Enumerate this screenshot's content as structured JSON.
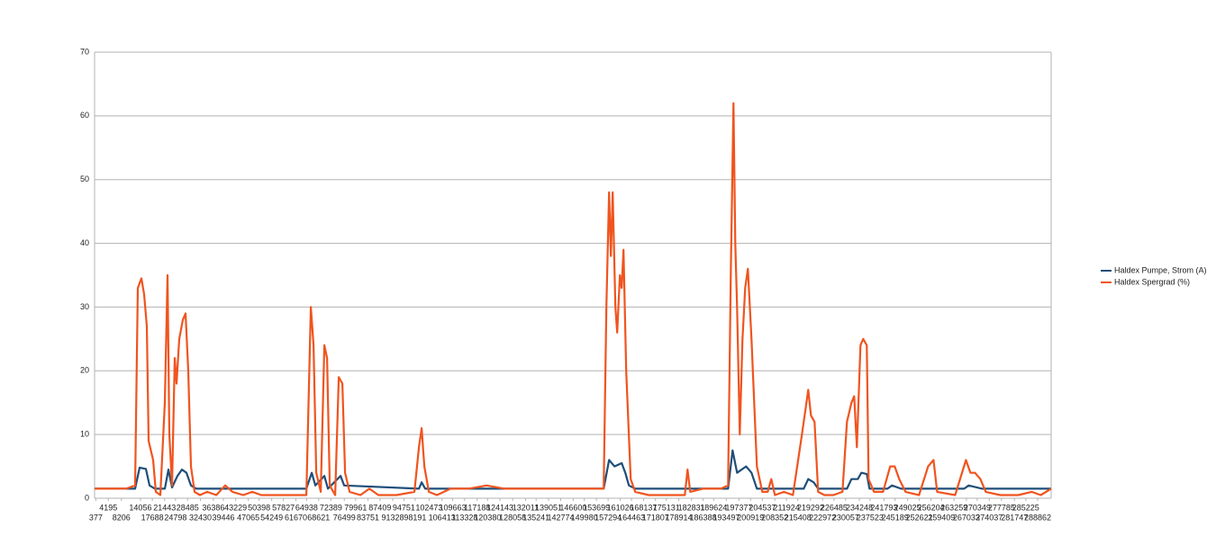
{
  "chart_data": {
    "type": "line",
    "ylim": [
      0,
      70
    ],
    "yticks": [
      0,
      10,
      20,
      30,
      40,
      50,
      60,
      70
    ],
    "grid": true,
    "xlim": [
      0,
      293000
    ],
    "xticks": [
      377,
      4195,
      8206,
      14056,
      17688,
      21443,
      24798,
      28485,
      32430,
      36386,
      39446,
      43229,
      47065,
      50398,
      54249,
      57827,
      61670,
      64938,
      68621,
      72389,
      76499,
      79961,
      83751,
      87409,
      91328,
      94751,
      98191,
      102473,
      106413,
      109663,
      113328,
      117188,
      120380,
      124143,
      128058,
      132011,
      135241,
      139051,
      142774,
      146600,
      149980,
      153699,
      157294,
      161026,
      164463,
      168137,
      171807,
      175131,
      178914,
      182831,
      186388,
      189624,
      193497,
      197377,
      200919,
      204537,
      208352,
      211924,
      215408,
      219292,
      222972,
      226485,
      230057,
      234248,
      237523,
      241793,
      245189,
      249025,
      252621,
      256204,
      259409,
      263259,
      267033,
      270349,
      274037,
      277785,
      281747,
      285225,
      288862
    ],
    "legend": "right",
    "series": [
      {
        "name": "Haldex Pumpe, Strom (A)",
        "color": "#1f4e79",
        "x": [
          0,
          12420,
          13800,
          15732,
          16836,
          18492,
          21528,
          22632,
          23736,
          25392,
          26772,
          28152,
          29532,
          31188,
          64860,
          66516,
          67620,
          70380,
          71484,
          75348,
          76452,
          99360,
          100188,
          101292,
          155940,
          157596,
          159252,
          161460,
          162564,
          163668,
          165600,
          194028,
          195408,
          196788,
          199548,
          201204,
          202860,
          217212,
          218592,
          220248,
          221628,
          230460,
          231840,
          233772,
          234876,
          236532,
          237360,
          242880,
          244260,
          247020,
          266340,
          267720,
          271860,
          293000
        ],
        "values": [
          1.5,
          1.5,
          4.8,
          4.6,
          2,
          1.5,
          1.5,
          4.5,
          1.7,
          3.5,
          4.5,
          4,
          2,
          1.5,
          1.5,
          4,
          2,
          3.5,
          1.5,
          3.5,
          2,
          1.5,
          2.5,
          1.5,
          1.5,
          6,
          5,
          5.5,
          4,
          2,
          1.5,
          1.5,
          7.5,
          4,
          5,
          4,
          1.5,
          1.5,
          3,
          2.5,
          1.5,
          1.5,
          3,
          3,
          4,
          3.8,
          1.5,
          1.5,
          2,
          1.5,
          1.5,
          2,
          1.5,
          1.5
        ]
      },
      {
        "name": "Haldex Spergrad (%)",
        "color": "#f0541e",
        "x": [
          0,
          9660,
          12420,
          13248,
          14352,
          15180,
          16008,
          16560,
          17940,
          18768,
          20148,
          21528,
          22356,
          22908,
          23736,
          24564,
          25116,
          25944,
          27048,
          27876,
          28704,
          29532,
          30636,
          32292,
          34500,
          37260,
          40020,
          42228,
          45540,
          48300,
          51060,
          56580,
          62100,
          64860,
          66240,
          67068,
          67896,
          69276,
          70380,
          71208,
          72036,
          73692,
          74796,
          75900,
          76728,
          78108,
          81420,
          84180,
          86940,
          92460,
          97980,
          99360,
          100188,
          101016,
          102396,
          104880,
          109020,
          114540,
          120060,
          125580,
          136620,
          147660,
          155940,
          156768,
          157596,
          158148,
          158700,
          159528,
          160080,
          160908,
          161460,
          162012,
          162840,
          164220,
          165600,
          169740,
          175260,
          180780,
          181608,
          182436,
          186300,
          191820,
          194028,
          194856,
          195684,
          196236,
          196788,
          197616,
          198444,
          199272,
          200100,
          201204,
          202860,
          204516,
          206172,
          207276,
          208380,
          211140,
          213900,
          216660,
          218592,
          219420,
          220524,
          221628,
          223560,
          226320,
          229080,
          230460,
          231840,
          232668,
          233496,
          234600,
          235428,
          236532,
          237084,
          238740,
          241500,
          243708,
          245088,
          246468,
          248400,
          252540,
          255300,
          256956,
          258060,
          263580,
          266892,
          268272,
          269652,
          271308,
          272964,
          277380,
          282900,
          287040,
          289800,
          293000
        ],
        "values": [
          1.5,
          1.5,
          2,
          33,
          34.5,
          32,
          27,
          9,
          6,
          1,
          0.5,
          15,
          35,
          10,
          2,
          22,
          18,
          25,
          28,
          29,
          20,
          5,
          1,
          0.5,
          1,
          0.5,
          2,
          1,
          0.5,
          1,
          0.5,
          0.5,
          0.5,
          0.5,
          30,
          24,
          4,
          1,
          24,
          22,
          2,
          0.5,
          19,
          18,
          4,
          1,
          0.5,
          1.5,
          0.5,
          0.5,
          1,
          8,
          11,
          5,
          1,
          0.5,
          1.5,
          1.5,
          2,
          1.5,
          1.5,
          1.5,
          1.5,
          30,
          48,
          38,
          48,
          30,
          26,
          35,
          33,
          39,
          20,
          3,
          1,
          0.5,
          0.5,
          0.5,
          4.5,
          1,
          1.5,
          1.5,
          2,
          35,
          62,
          40,
          30,
          10,
          25,
          33,
          36,
          25,
          5,
          1,
          1,
          3,
          0.5,
          1,
          0.5,
          10,
          17,
          13,
          12,
          1,
          0.5,
          0.5,
          1,
          12,
          15,
          16,
          8,
          24,
          25,
          24,
          3,
          1,
          1,
          5,
          5,
          3,
          1,
          0.5,
          5,
          6,
          1,
          0.5,
          6,
          4,
          4,
          3,
          1,
          0.5,
          0.5,
          1,
          0.5,
          1.5
        ]
      }
    ]
  }
}
